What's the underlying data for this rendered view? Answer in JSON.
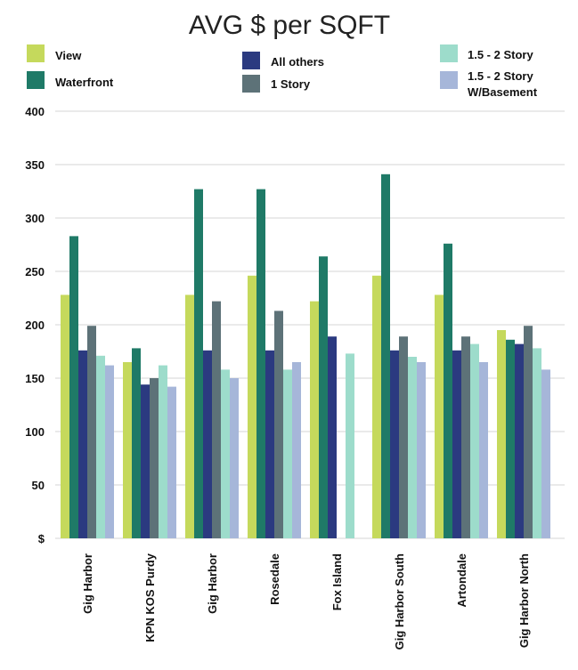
{
  "chart_data": {
    "type": "bar",
    "title": "AVG $ per SQFT",
    "xlabel": "",
    "ylabel": "",
    "ylim": [
      0,
      400
    ],
    "yticks": [
      {
        "value": 400,
        "label": "400"
      },
      {
        "value": 350,
        "label": "350"
      },
      {
        "value": 300,
        "label": "300"
      },
      {
        "value": 250,
        "label": "250"
      },
      {
        "value": 200,
        "label": "200"
      },
      {
        "value": 150,
        "label": "150"
      },
      {
        "value": 100,
        "label": "100"
      },
      {
        "value": 50,
        "label": "50"
      },
      {
        "value": 0,
        "label": "$"
      }
    ],
    "grid": true,
    "legend_position": "top",
    "categories": [
      "Gig Harbor",
      "KPN KOS Purdy",
      "Gig Harbor",
      "Rosedale",
      "Fox Island",
      "Gig Harbor South",
      "Artondale",
      "Gig Harbor North"
    ],
    "series": [
      {
        "name": "View",
        "color": "#c5d95c",
        "values": [
          228,
          165,
          228,
          246,
          222,
          246,
          228,
          195
        ]
      },
      {
        "name": "Waterfront",
        "color": "#1f7a67",
        "values": [
          283,
          178,
          327,
          327,
          264,
          341,
          276,
          186
        ]
      },
      {
        "name": "All others",
        "color": "#2b3a80",
        "values": [
          176,
          144,
          176,
          176,
          189,
          176,
          176,
          182
        ]
      },
      {
        "name": "1 Story",
        "color": "#5d7278",
        "values": [
          199,
          150,
          222,
          213,
          null,
          189,
          189,
          199
        ]
      },
      {
        "name": "1.5 - 2 Story",
        "color": "#9ddccb",
        "values": [
          171,
          162,
          158,
          158,
          173,
          170,
          182,
          178
        ]
      },
      {
        "name": "1.5 - 2 Story W/Basement",
        "color": "#a6b6d9",
        "values": [
          162,
          142,
          150,
          165,
          null,
          165,
          165,
          158
        ]
      }
    ],
    "legend": [
      {
        "lines": [
          "View"
        ]
      },
      {
        "lines": [
          "Waterfront"
        ]
      },
      {
        "lines": [
          "All others"
        ]
      },
      {
        "lines": [
          "1 Story"
        ]
      },
      {
        "lines": [
          "1.5 - 2 Story"
        ]
      },
      {
        "lines": [
          "1.5 - 2 Story",
          "W/Basement"
        ]
      }
    ]
  }
}
